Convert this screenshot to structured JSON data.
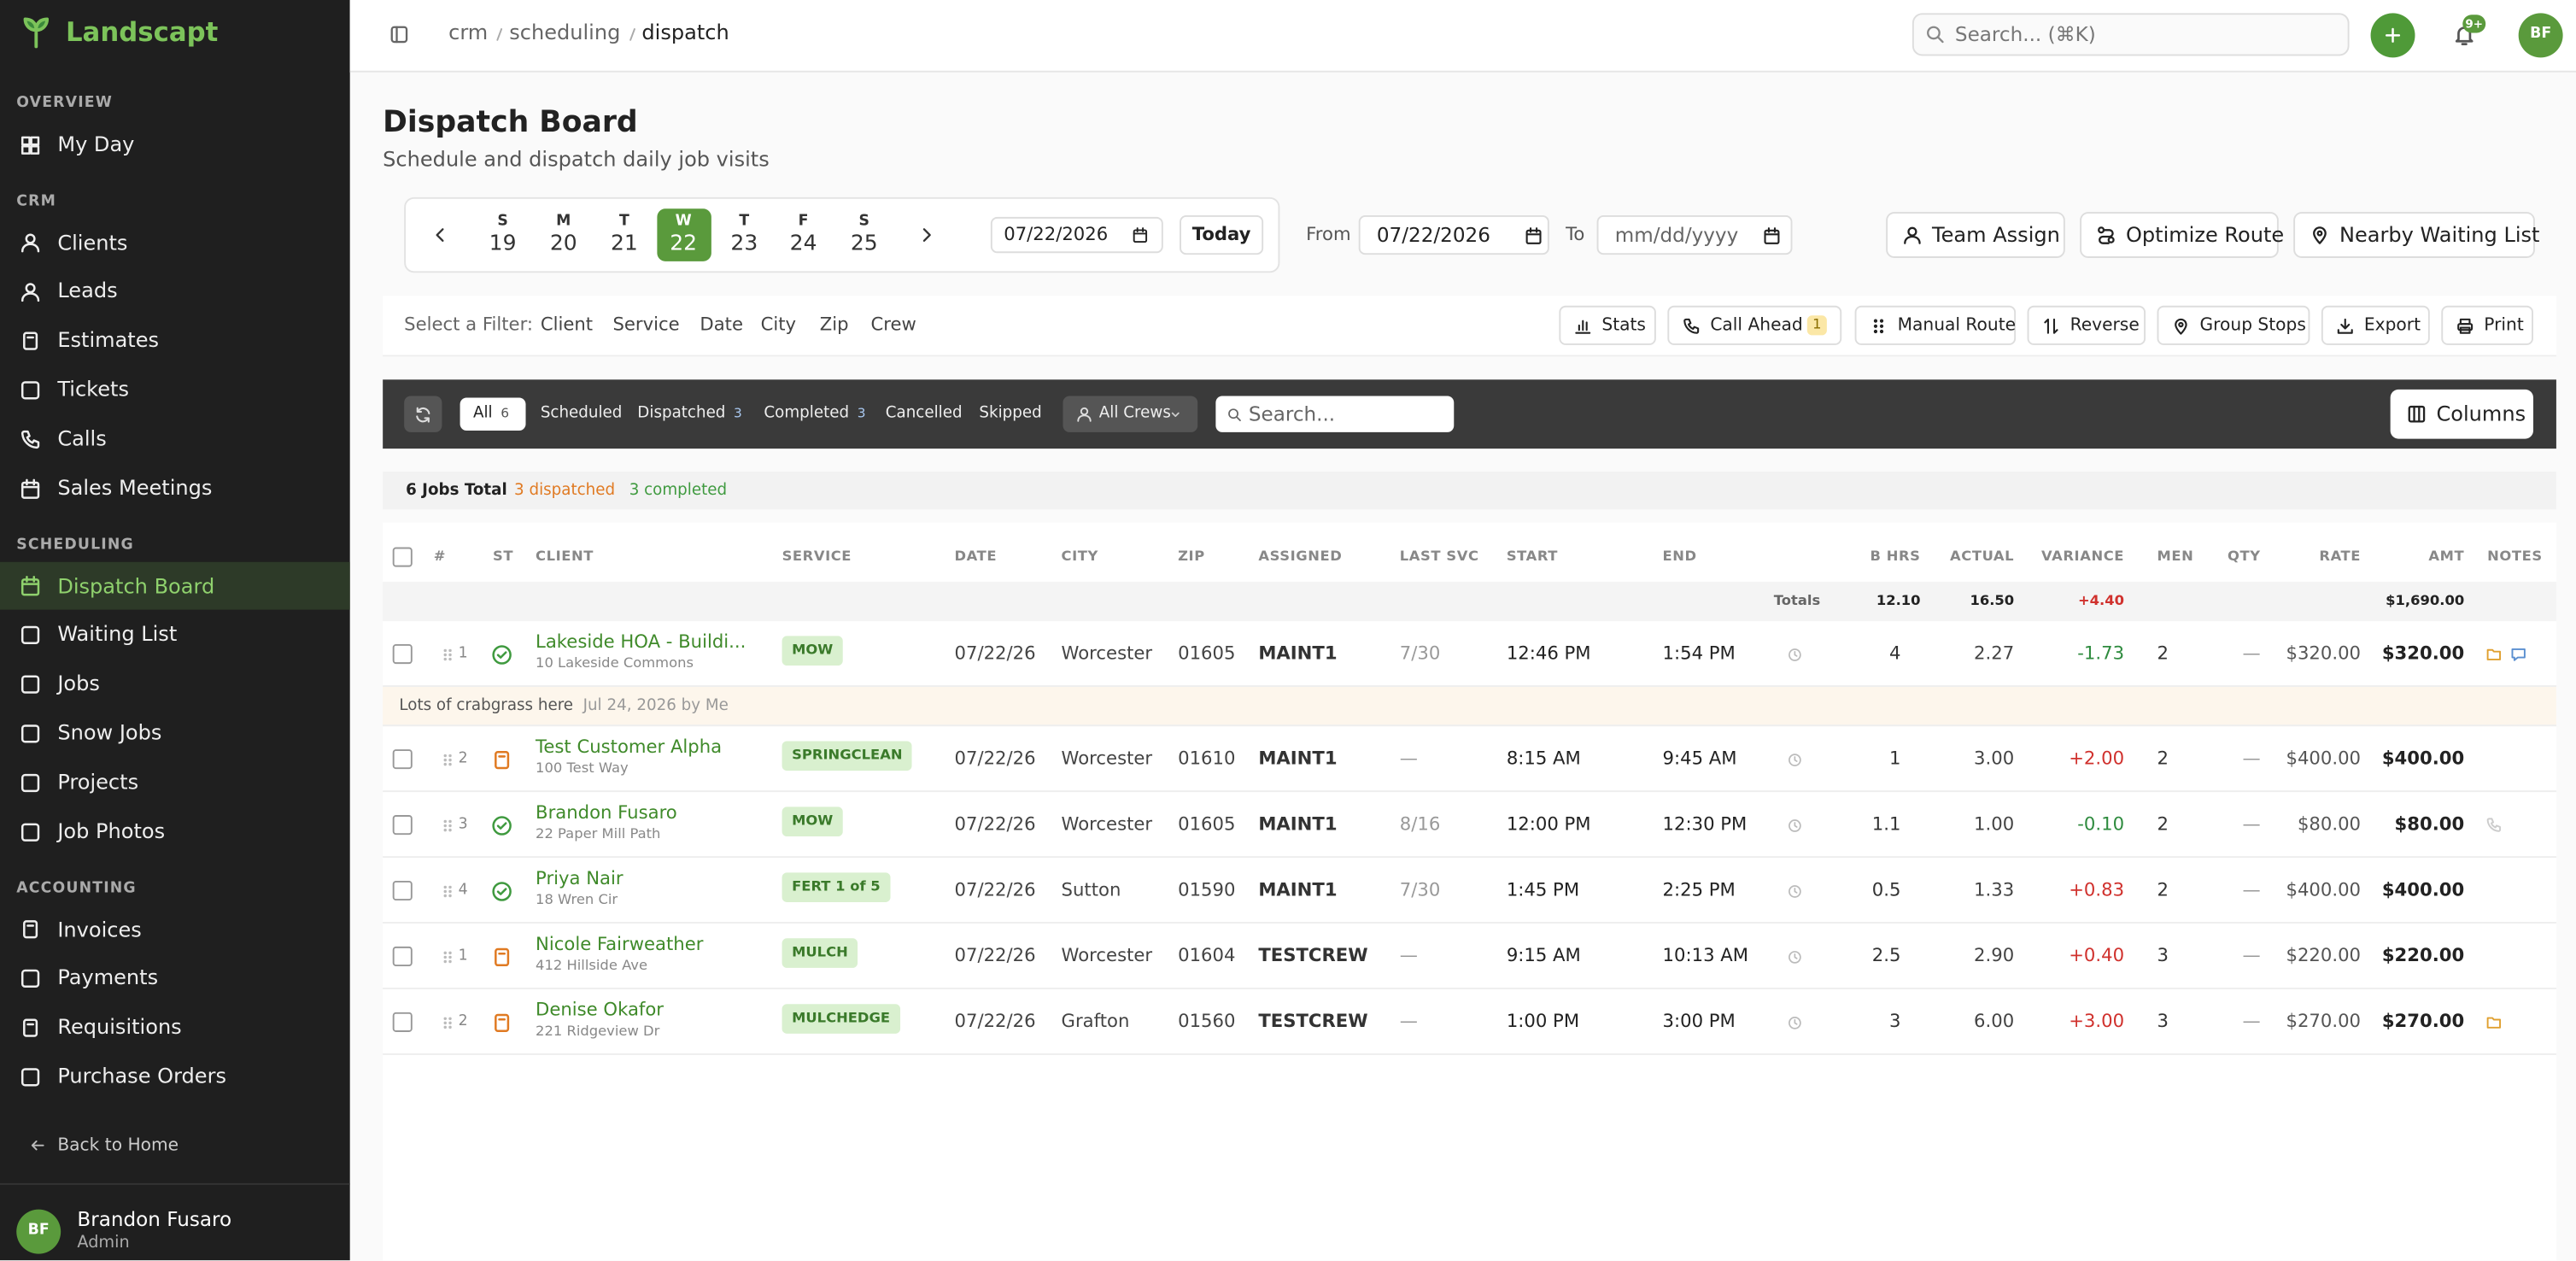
{
  "sidebar": {
    "brand": "Landscapt",
    "active": {
      "section": 2,
      "item": 0
    },
    "sections": [
      {
        "title": "OVERVIEW",
        "items": [
          "My Day"
        ]
      },
      {
        "title": "CRM",
        "items": [
          "Clients",
          "Leads",
          "Estimates",
          "Tickets",
          "Calls",
          "Sales Meetings"
        ]
      },
      {
        "title": "SCHEDULING",
        "items": [
          "Dispatch Board",
          "Waiting List",
          "Jobs",
          "Snow Jobs",
          "Projects",
          "Job Photos"
        ]
      },
      {
        "title": "ACCOUNTING",
        "items": [
          "Invoices",
          "Payments",
          "Requisitions",
          "Purchase Orders"
        ]
      }
    ],
    "back": "Back to Home",
    "user": {
      "initials": "BF",
      "name": "Brandon Fusaro",
      "role": "Admin"
    }
  },
  "topbar": {
    "breadcrumb": [
      "crm",
      "scheduling",
      "dispatch"
    ],
    "search": "Search... (⌘K)",
    "notifications": "9+",
    "avatar": "BF"
  },
  "header": {
    "title": "Dispatch Board",
    "subtitle": "Schedule and dispatch daily job visits"
  },
  "week": {
    "selected": 3,
    "days": [
      {
        "letter": "S",
        "date": "19"
      },
      {
        "letter": "M",
        "date": "20"
      },
      {
        "letter": "T",
        "date": "21"
      },
      {
        "letter": "W",
        "date": "22"
      },
      {
        "letter": "T",
        "date": "23"
      },
      {
        "letter": "F",
        "date": "24"
      },
      {
        "letter": "S",
        "date": "25"
      }
    ],
    "date_input": "07/22/2026",
    "today": "Today"
  },
  "range": {
    "from_label": "From",
    "from": "07/22/2026",
    "to_label": "To",
    "to": "mm/dd/yyyy"
  },
  "actions": [
    "Team Assign",
    "Optimize Route",
    "Nearby Waiting List"
  ],
  "filters": {
    "label": "Select a Filter:",
    "items": [
      "Client",
      "Service",
      "Date",
      "City",
      "Zip",
      "Crew"
    ]
  },
  "tools": [
    {
      "label": "Stats"
    },
    {
      "label": "Call Ahead",
      "count": "1"
    },
    {
      "label": "Manual Route"
    },
    {
      "label": "Reverse"
    },
    {
      "label": "Group Stops"
    },
    {
      "label": "Export"
    },
    {
      "label": "Print"
    }
  ],
  "toolbar": {
    "tabs": [
      {
        "label": "All",
        "count": "6"
      },
      {
        "label": "Scheduled"
      },
      {
        "label": "Dispatched",
        "count": "3"
      },
      {
        "label": "Completed",
        "count": "3"
      },
      {
        "label": "Cancelled"
      },
      {
        "label": "Skipped"
      }
    ],
    "crews": "All Crews",
    "search": "Search...",
    "columns": "Columns"
  },
  "summary": {
    "total": "6 Jobs Total",
    "dispatched": "3 dispatched",
    "completed": "3 completed"
  },
  "table": {
    "columns": [
      "#",
      "ST",
      "CLIENT",
      "SERVICE",
      "DATE",
      "CITY",
      "ZIP",
      "ASSIGNED",
      "LAST SVC",
      "START",
      "END",
      "B HRS",
      "ACTUAL",
      "VARIANCE",
      "MEN",
      "QTY",
      "RATE",
      "AMT",
      "NOTES"
    ],
    "totals": {
      "label": "Totals",
      "b_hrs": "12.10",
      "actual": "16.50",
      "variance": "+4.40",
      "amt": "$1,690.00"
    },
    "rows": [
      {
        "num": "1",
        "status": "done",
        "client": "Lakeside HOA - Buildi...",
        "address": "10 Lakeside Commons",
        "service": "MOW",
        "date": "07/22/26",
        "city": "Worcester",
        "zip": "01605",
        "assigned": "MAINT1",
        "last_svc": "7/30",
        "start": "12:46 PM",
        "end": "1:54 PM",
        "b_hrs": "4",
        "actual": "2.27",
        "variance": "-1.73",
        "men": "2",
        "qty": "—",
        "rate": "$320.00",
        "amt": "$320.00",
        "notes": [
          "folder",
          "chat"
        ],
        "note": {
          "text": "Lots of crabgrass here",
          "meta": "Jul 24, 2026 by Me"
        }
      },
      {
        "num": "2",
        "status": "pending",
        "client": "Test Customer Alpha",
        "address": "100 Test Way",
        "service": "SPRINGCLEAN",
        "date": "07/22/26",
        "city": "Worcester",
        "zip": "01610",
        "assigned": "MAINT1",
        "last_svc": "—",
        "start": "8:15 AM",
        "end": "9:45 AM",
        "b_hrs": "1",
        "actual": "3.00",
        "variance": "+2.00",
        "men": "2",
        "qty": "—",
        "rate": "$400.00",
        "amt": "$400.00",
        "notes": []
      },
      {
        "num": "3",
        "status": "done",
        "client": "Brandon Fusaro",
        "address": "22 Paper Mill Path",
        "service": "MOW",
        "date": "07/22/26",
        "city": "Worcester",
        "zip": "01605",
        "assigned": "MAINT1",
        "last_svc": "8/16",
        "start": "12:00 PM",
        "end": "12:30 PM",
        "b_hrs": "1.1",
        "actual": "1.00",
        "variance": "-0.10",
        "men": "2",
        "qty": "—",
        "rate": "$80.00",
        "amt": "$80.00",
        "notes": [
          "phone"
        ]
      },
      {
        "num": "4",
        "status": "done",
        "client": "Priya Nair",
        "address": "18 Wren Cir",
        "service": "FERT 1 of 5",
        "date": "07/22/26",
        "city": "Sutton",
        "zip": "01590",
        "assigned": "MAINT1",
        "last_svc": "7/30",
        "start": "1:45 PM",
        "end": "2:25 PM",
        "b_hrs": "0.5",
        "actual": "1.33",
        "variance": "+0.83",
        "men": "2",
        "qty": "—",
        "rate": "$400.00",
        "amt": "$400.00",
        "notes": []
      },
      {
        "num": "1",
        "status": "pending",
        "client": "Nicole Fairweather",
        "address": "412 Hillside Ave",
        "service": "MULCH",
        "date": "07/22/26",
        "city": "Worcester",
        "zip": "01604",
        "assigned": "TESTCREW",
        "last_svc": "—",
        "start": "9:15 AM",
        "end": "10:13 AM",
        "b_hrs": "2.5",
        "actual": "2.90",
        "variance": "+0.40",
        "men": "3",
        "qty": "—",
        "rate": "$220.00",
        "amt": "$220.00",
        "notes": []
      },
      {
        "num": "2",
        "status": "pending",
        "client": "Denise Okafor",
        "address": "221 Ridgeview Dr",
        "service": "MULCHEDGE",
        "date": "07/22/26",
        "city": "Grafton",
        "zip": "01560",
        "assigned": "TESTCREW",
        "last_svc": "—",
        "start": "1:00 PM",
        "end": "3:00 PM",
        "b_hrs": "3",
        "actual": "6.00",
        "variance": "+3.00",
        "men": "3",
        "qty": "—",
        "rate": "$270.00",
        "amt": "$270.00",
        "notes": [
          "folder"
        ]
      }
    ]
  }
}
